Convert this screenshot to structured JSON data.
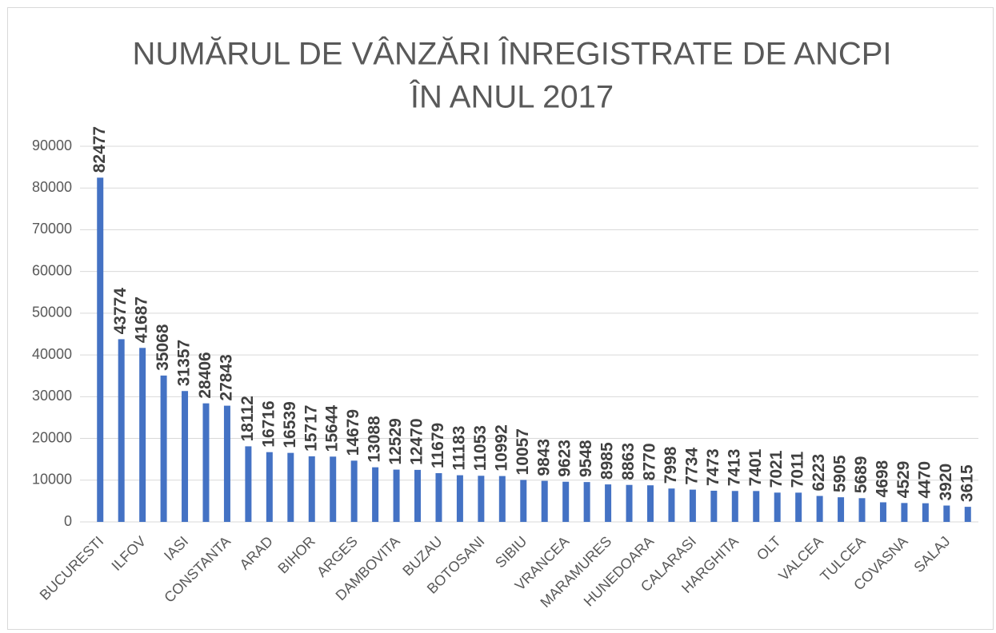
{
  "chart_data": {
    "type": "bar",
    "title": [
      "NUMĂRUL DE VÂNZĂRI ÎNREGISTRATE DE ANCPI",
      "ÎN ANUL 2017"
    ],
    "categories": [
      "BUCURESTI",
      null,
      "ILFOV",
      null,
      "IASI",
      null,
      "CONSTANTA",
      null,
      "ARAD",
      null,
      "BIHOR",
      null,
      "ARGES",
      null,
      "DAMBOVITA",
      null,
      "BUZAU",
      null,
      "BOTOSANI",
      null,
      "SIBIU",
      null,
      "VRANCEA",
      null,
      "MARAMURES",
      null,
      "HUNEDOARA",
      null,
      "CALARASI",
      null,
      "HARGHITA",
      null,
      "OLT",
      null,
      "VALCEA",
      null,
      "TULCEA",
      null,
      "COVASNA",
      null,
      "SALAJ",
      null
    ],
    "values": [
      82477,
      43774,
      41687,
      35068,
      31357,
      28406,
      27843,
      18112,
      16716,
      16539,
      15717,
      15644,
      14679,
      13088,
      12529,
      12470,
      11679,
      11183,
      11053,
      10992,
      10057,
      9843,
      9623,
      9548,
      8985,
      8863,
      8770,
      7998,
      7734,
      7473,
      7413,
      7401,
      7021,
      7011,
      6223,
      5905,
      5689,
      4698,
      4529,
      4470,
      3920,
      3615
    ],
    "color": "#4472c4",
    "ylim": [
      0,
      90000
    ],
    "yticks": [
      0,
      10000,
      20000,
      30000,
      40000,
      50000,
      60000,
      70000,
      80000,
      90000
    ],
    "grid": true
  }
}
